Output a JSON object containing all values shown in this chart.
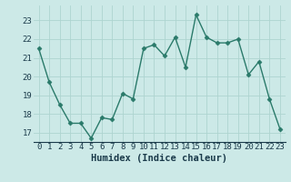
{
  "x": [
    0,
    1,
    2,
    3,
    4,
    5,
    6,
    7,
    8,
    9,
    10,
    11,
    12,
    13,
    14,
    15,
    16,
    17,
    18,
    19,
    20,
    21,
    22,
    23
  ],
  "y": [
    21.5,
    19.7,
    18.5,
    17.5,
    17.5,
    16.7,
    17.8,
    17.7,
    19.1,
    18.8,
    21.5,
    21.7,
    21.1,
    22.1,
    20.5,
    23.3,
    22.1,
    21.8,
    21.8,
    22.0,
    20.1,
    20.8,
    18.8,
    17.2
  ],
  "line_color": "#2a7a6a",
  "bg_color": "#cce9e7",
  "grid_color": "#aed4d0",
  "xlabel": "Humidex (Indice chaleur)",
  "tick_label_color": "#1a3a4a",
  "ylim": [
    16.5,
    23.8
  ],
  "xlim": [
    -0.5,
    23.5
  ],
  "yticks": [
    17,
    18,
    19,
    20,
    21,
    22,
    23
  ],
  "xticks": [
    0,
    1,
    2,
    3,
    4,
    5,
    6,
    7,
    8,
    9,
    10,
    11,
    12,
    13,
    14,
    15,
    16,
    17,
    18,
    19,
    20,
    21,
    22,
    23
  ],
  "marker": "D",
  "marker_size": 2.5,
  "line_width": 1.0,
  "tick_font_size": 6.5,
  "label_font_size": 7.5
}
